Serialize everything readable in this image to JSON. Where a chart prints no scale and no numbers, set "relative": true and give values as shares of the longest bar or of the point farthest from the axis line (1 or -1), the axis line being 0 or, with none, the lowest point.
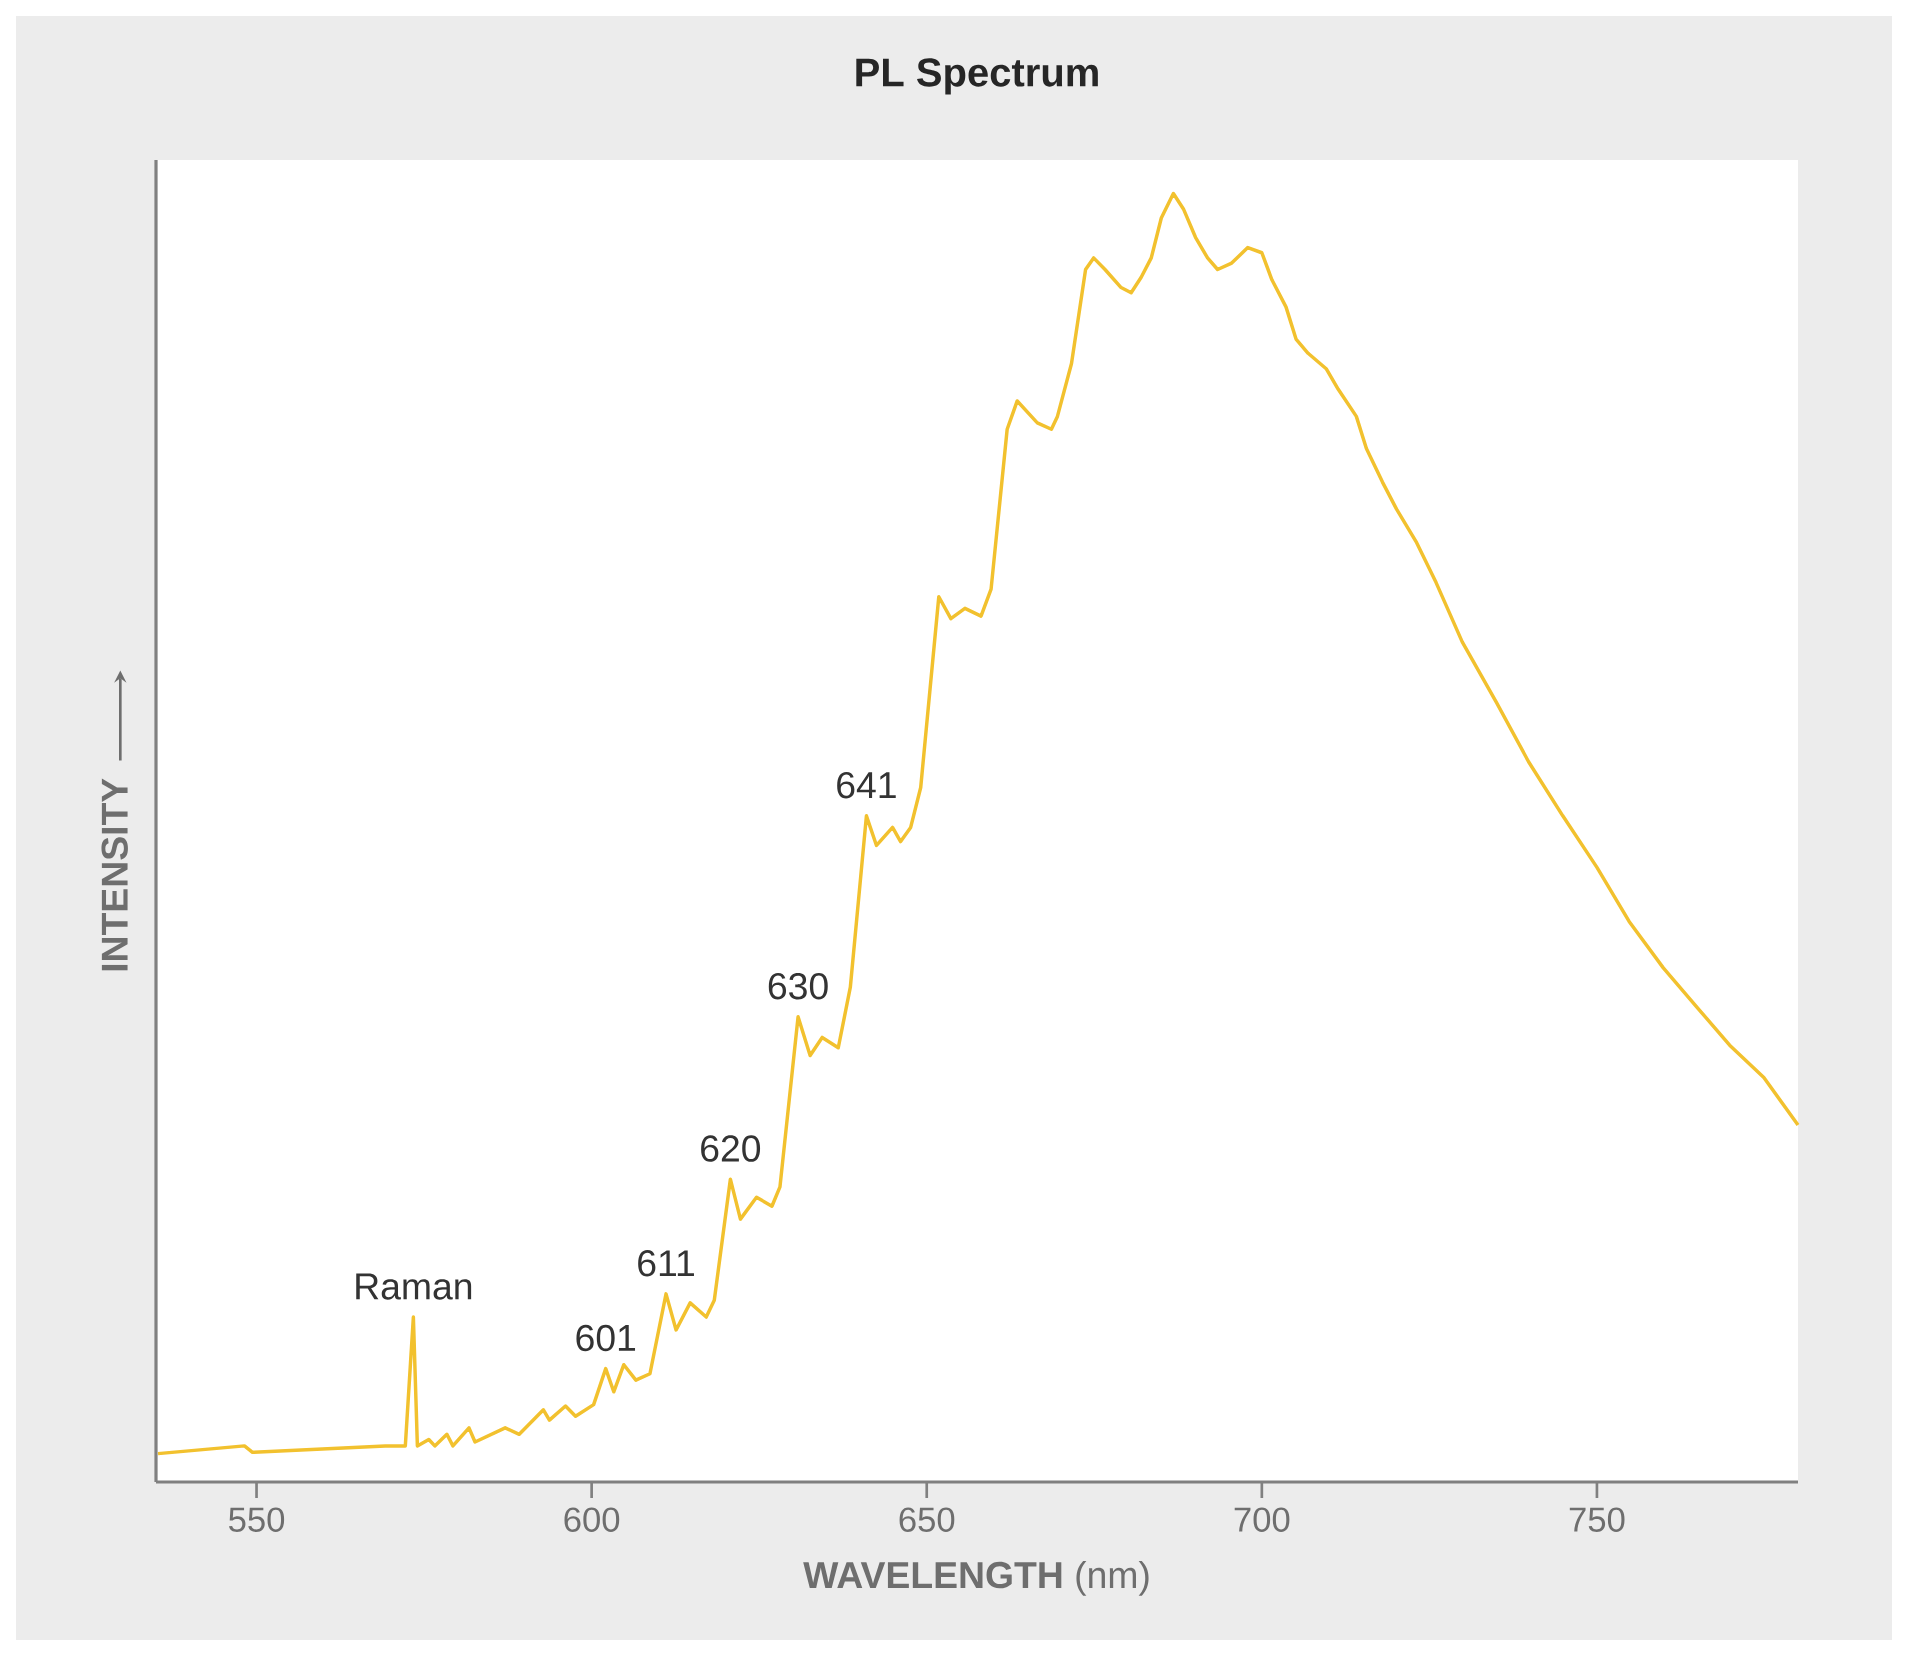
{
  "chart_data": {
    "type": "line",
    "title": "PL Spectrum",
    "xlabel": "**WAVELENGTH** (nm)",
    "ylabel": "INTENSITY",
    "relative": true,
    "xlim": [
      535,
      780
    ],
    "xticks": [
      550,
      600,
      650,
      700,
      750
    ],
    "grid": false,
    "marker": "none",
    "line_style": "solid",
    "series": [
      {
        "color": "#f2c12e",
        "x": [
          535.3,
          548.2,
          549.4,
          569.2,
          572.2,
          573.4,
          574.0,
          575.7,
          576.6,
          578.4,
          579.3,
          581.7,
          582.6,
          587.1,
          589.2,
          592.8,
          593.7,
          596.1,
          597.6,
          600.3,
          602.1,
          603.3,
          604.8,
          606.6,
          608.7,
          611.1,
          612.6,
          614.7,
          617.1,
          618.3,
          620.7,
          622.2,
          624.6,
          626.9,
          628.1,
          630.8,
          632.6,
          634.4,
          636.8,
          638.6,
          641.0,
          642.5,
          644.9,
          646.1,
          647.6,
          649.1,
          651.8,
          653.6,
          655.7,
          658.1,
          659.6,
          662.0,
          663.5,
          666.5,
          668.6,
          669.5,
          671.6,
          673.7,
          674.9,
          676.6,
          679.0,
          680.5,
          682.0,
          683.5,
          685.0,
          686.8,
          688.3,
          690.1,
          691.9,
          693.4,
          695.5,
          697.9,
          700.0,
          701.5,
          703.6,
          705.1,
          706.9,
          709.6,
          711.4,
          714.1,
          715.6,
          718.0,
          720.1,
          723.1,
          726.0,
          729.9,
          735.0,
          739.8,
          744.9,
          750.0,
          754.8,
          759.9,
          765.0,
          769.8,
          774.9,
          780.0
        ],
        "values": [
          0.022,
          0.028,
          0.023,
          0.028,
          0.028,
          0.128,
          0.028,
          0.033,
          0.028,
          0.037,
          0.028,
          0.042,
          0.031,
          0.042,
          0.037,
          0.056,
          0.048,
          0.059,
          0.051,
          0.06,
          0.088,
          0.07,
          0.091,
          0.079,
          0.084,
          0.146,
          0.118,
          0.139,
          0.128,
          0.141,
          0.235,
          0.204,
          0.221,
          0.214,
          0.229,
          0.361,
          0.331,
          0.345,
          0.337,
          0.384,
          0.517,
          0.494,
          0.508,
          0.497,
          0.508,
          0.539,
          0.687,
          0.67,
          0.678,
          0.672,
          0.693,
          0.817,
          0.839,
          0.822,
          0.817,
          0.827,
          0.868,
          0.941,
          0.95,
          0.941,
          0.927,
          0.923,
          0.935,
          0.95,
          0.981,
          1.0,
          0.988,
          0.966,
          0.95,
          0.941,
          0.946,
          0.958,
          0.954,
          0.933,
          0.912,
          0.887,
          0.876,
          0.864,
          0.848,
          0.827,
          0.802,
          0.776,
          0.755,
          0.729,
          0.698,
          0.652,
          0.605,
          0.559,
          0.517,
          0.477,
          0.435,
          0.399,
          0.368,
          0.339,
          0.314,
          0.277
        ]
      }
    ],
    "annotations": [
      {
        "text": "Raman",
        "x": 573.4,
        "y": 0.128
      },
      {
        "text": "601",
        "x": 602.1,
        "y": 0.088
      },
      {
        "text": "611",
        "x": 611.1,
        "y": 0.146
      },
      {
        "text": "620",
        "x": 620.7,
        "y": 0.235
      },
      {
        "text": "630",
        "x": 630.8,
        "y": 0.361
      },
      {
        "text": "641",
        "x": 641.0,
        "y": 0.517
      }
    ]
  }
}
